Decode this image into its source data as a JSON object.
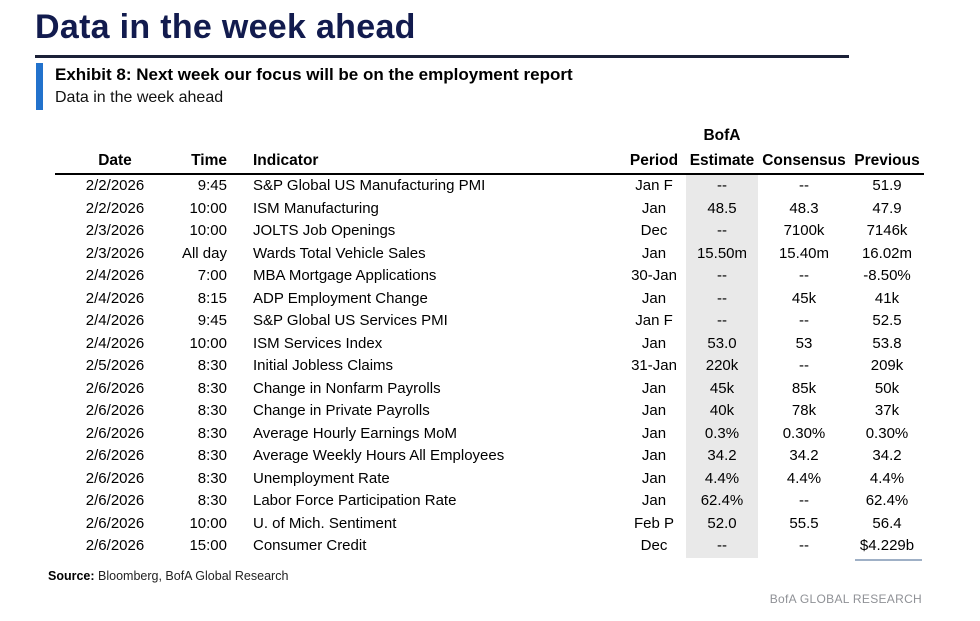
{
  "page": {
    "title": "Data in the week ahead",
    "exhibit_title": "Exhibit 8: Next week our focus will be on the employment report",
    "exhibit_subtitle": "Data in the week ahead",
    "source_label": "Source:",
    "source_text": " Bloomberg, BofA Global Research",
    "footer_brand": "BofA GLOBAL RESEARCH"
  },
  "colors": {
    "title_navy": "#121b4e",
    "accent_blue": "#2272cc",
    "header_rule": "#1b2138",
    "estimate_column_bg": "#e9e9e9",
    "footer_gray": "#8f9196"
  },
  "table": {
    "group_header": "BofA",
    "columns": [
      "Date",
      "Time",
      "Indicator",
      "Period",
      "Estimate",
      "Consensus",
      "Previous"
    ],
    "rows": [
      {
        "date": "2/2/2026",
        "time": "9:45",
        "indicator": "S&P Global US Manufacturing PMI",
        "period": "Jan F",
        "estimate": "--",
        "consensus": "--",
        "previous": "51.9"
      },
      {
        "date": "2/2/2026",
        "time": "10:00",
        "indicator": "ISM Manufacturing",
        "period": "Jan",
        "estimate": "48.5",
        "consensus": "48.3",
        "previous": "47.9"
      },
      {
        "date": "2/3/2026",
        "time": "10:00",
        "indicator": "JOLTS Job Openings",
        "period": "Dec",
        "estimate": "--",
        "consensus": "7100k",
        "previous": "7146k"
      },
      {
        "date": "2/3/2026",
        "time": "All day",
        "indicator": "Wards Total Vehicle Sales",
        "period": "Jan",
        "estimate": "15.50m",
        "consensus": "15.40m",
        "previous": "16.02m"
      },
      {
        "date": "2/4/2026",
        "time": "7:00",
        "indicator": "MBA Mortgage Applications",
        "period": "30-Jan",
        "estimate": "--",
        "consensus": "--",
        "previous": "-8.50%"
      },
      {
        "date": "2/4/2026",
        "time": "8:15",
        "indicator": "ADP Employment Change",
        "period": "Jan",
        "estimate": "--",
        "consensus": "45k",
        "previous": "41k"
      },
      {
        "date": "2/4/2026",
        "time": "9:45",
        "indicator": "S&P Global US Services PMI",
        "period": "Jan F",
        "estimate": "--",
        "consensus": "--",
        "previous": "52.5"
      },
      {
        "date": "2/4/2026",
        "time": "10:00",
        "indicator": "ISM Services Index",
        "period": "Jan",
        "estimate": "53.0",
        "consensus": "53",
        "previous": "53.8"
      },
      {
        "date": "2/5/2026",
        "time": "8:30",
        "indicator": "Initial Jobless Claims",
        "period": "31-Jan",
        "estimate": "220k",
        "consensus": "--",
        "previous": "209k"
      },
      {
        "date": "2/6/2026",
        "time": "8:30",
        "indicator": "Change in Nonfarm Payrolls",
        "period": "Jan",
        "estimate": "45k",
        "consensus": "85k",
        "previous": "50k"
      },
      {
        "date": "2/6/2026",
        "time": "8:30",
        "indicator": "Change in Private Payrolls",
        "period": "Jan",
        "estimate": "40k",
        "consensus": "78k",
        "previous": "37k"
      },
      {
        "date": "2/6/2026",
        "time": "8:30",
        "indicator": "Average Hourly Earnings MoM",
        "period": "Jan",
        "estimate": "0.3%",
        "consensus": "0.30%",
        "previous": "0.30%"
      },
      {
        "date": "2/6/2026",
        "time": "8:30",
        "indicator": "Average Weekly Hours All Employees",
        "period": "Jan",
        "estimate": "34.2",
        "consensus": "34.2",
        "previous": "34.2"
      },
      {
        "date": "2/6/2026",
        "time": "8:30",
        "indicator": "Unemployment Rate",
        "period": "Jan",
        "estimate": "4.4%",
        "consensus": "4.4%",
        "previous": "4.4%"
      },
      {
        "date": "2/6/2026",
        "time": "8:30",
        "indicator": "Labor Force Participation Rate",
        "period": "Jan",
        "estimate": "62.4%",
        "consensus": "--",
        "previous": "62.4%"
      },
      {
        "date": "2/6/2026",
        "time": "10:00",
        "indicator": "U. of Mich. Sentiment",
        "period": "Feb P",
        "estimate": "52.0",
        "consensus": "55.5",
        "previous": "56.4"
      },
      {
        "date": "2/6/2026",
        "time": "15:00",
        "indicator": "Consumer Credit",
        "period": "Dec",
        "estimate": "--",
        "consensus": "--",
        "previous": "$4.229b"
      }
    ]
  }
}
